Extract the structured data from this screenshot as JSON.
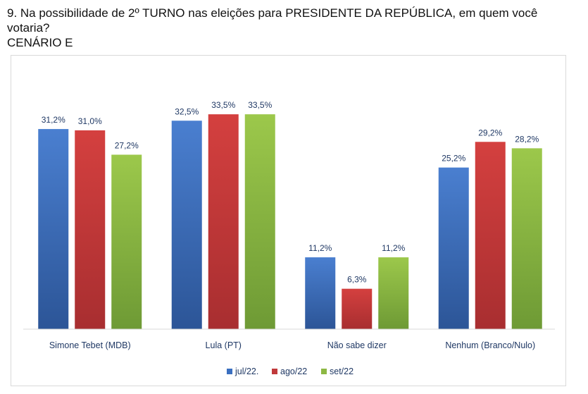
{
  "title_line1": "9. Na possibilidade de 2º TURNO nas eleições para PRESIDENTE DA REPÚBLICA, em quem você votaria?",
  "title_line2": "CENÁRIO E",
  "chart_data": {
    "type": "bar",
    "categories": [
      "Simone Tebet (MDB)",
      "Lula (PT)",
      "Não sabe dizer",
      "Nenhum (Branco/Nulo)"
    ],
    "series": [
      {
        "name": "jul/22.",
        "values": [
          31.2,
          32.5,
          11.2,
          25.2
        ],
        "labels": [
          "31,2%",
          "32,5%",
          "11,2%",
          "25,2%"
        ],
        "color": "#3a6fc0"
      },
      {
        "name": "ago/22",
        "values": [
          31.0,
          33.5,
          6.3,
          29.2
        ],
        "labels": [
          "31,0%",
          "33,5%",
          "6,3%",
          "29,2%"
        ],
        "color": "#c0393b"
      },
      {
        "name": "set/22",
        "values": [
          27.2,
          33.5,
          11.2,
          28.2
        ],
        "labels": [
          "27,2%",
          "33,5%",
          "11,2%",
          "28,2%"
        ],
        "color": "#8db843"
      }
    ],
    "ylim": [
      0,
      40
    ],
    "legend_position": "bottom",
    "grid": false
  }
}
